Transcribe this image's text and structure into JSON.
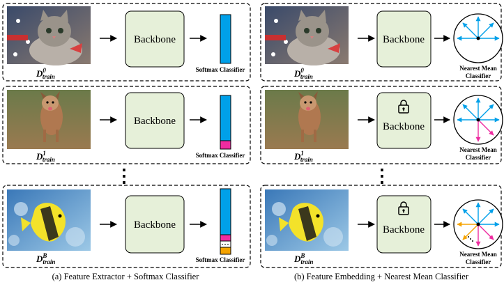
{
  "backbone_label": "Backbone",
  "softmax_label": "Softmax Classifier",
  "nmc_label_line1": "Nearest Mean",
  "nmc_label_line2": "Classifier",
  "data_symbol": "D",
  "data_sub": "train",
  "stage_superscripts": [
    "0",
    "1",
    "B"
  ],
  "ellipsis": "⋮",
  "caption_left": "(a) Feature Extractor + Softmax Classifier",
  "caption_right": "(b) Feature Embedding + Nearest Mean Classifier",
  "colors": {
    "backbone_fill": "#e6f0d9",
    "old_class": "#00a0e9",
    "stage1_class": "#ee2ca0",
    "stageB_class": "#f5a300"
  },
  "icons": [
    "lock-icon"
  ]
}
